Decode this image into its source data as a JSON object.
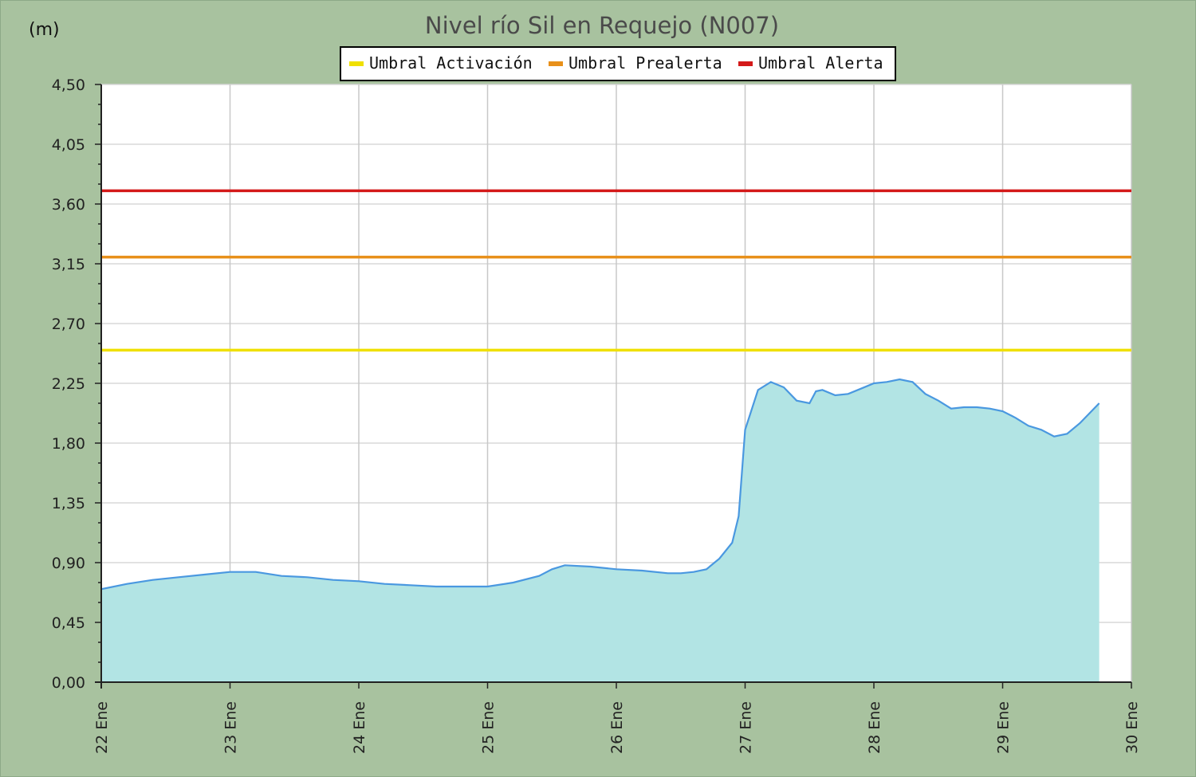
{
  "chart_data": {
    "type": "area",
    "title": "Nivel río Sil en Requejo  (N007)",
    "ylabel": "(m)",
    "xlabel": "",
    "ylim": [
      0,
      4.5
    ],
    "yticks": [
      "0,00",
      "0,45",
      "0,90",
      "1,35",
      "1,80",
      "2,25",
      "2,70",
      "3,15",
      "3,60",
      "4,05",
      "4,50"
    ],
    "xticks": [
      "22 Ene",
      "23 Ene",
      "24 Ene",
      "25 Ene",
      "26 Ene",
      "27 Ene",
      "28 Ene",
      "29 Ene",
      "30 Ene"
    ],
    "xlim_days": [
      22,
      30
    ],
    "grid": true,
    "legend_position": "top-center",
    "thresholds": [
      {
        "name": "Umbral Activación",
        "value": 2.5,
        "color": "#f0e000"
      },
      {
        "name": "Umbral Prealerta",
        "value": 3.2,
        "color": "#e8901a"
      },
      {
        "name": "Umbral Alerta",
        "value": 3.7,
        "color": "#d41a1a"
      }
    ],
    "series": [
      {
        "color": "#4a98e0",
        "fill": "#b2e4e4",
        "x_days": [
          22.0,
          22.2,
          22.4,
          22.6,
          22.8,
          23.0,
          23.2,
          23.4,
          23.6,
          23.8,
          24.0,
          24.2,
          24.4,
          24.6,
          24.8,
          25.0,
          25.2,
          25.4,
          25.5,
          25.6,
          25.8,
          26.0,
          26.2,
          26.4,
          26.5,
          26.6,
          26.7,
          26.8,
          26.9,
          26.95,
          27.0,
          27.1,
          27.2,
          27.3,
          27.4,
          27.5,
          27.55,
          27.6,
          27.7,
          27.8,
          27.9,
          28.0,
          28.1,
          28.2,
          28.3,
          28.4,
          28.5,
          28.6,
          28.7,
          28.8,
          28.9,
          29.0,
          29.1,
          29.2,
          29.3,
          29.4,
          29.5,
          29.6,
          29.75
        ],
        "values": [
          0.7,
          0.74,
          0.77,
          0.79,
          0.81,
          0.83,
          0.83,
          0.8,
          0.79,
          0.77,
          0.76,
          0.74,
          0.73,
          0.72,
          0.72,
          0.72,
          0.75,
          0.8,
          0.85,
          0.88,
          0.87,
          0.85,
          0.84,
          0.82,
          0.82,
          0.83,
          0.85,
          0.93,
          1.05,
          1.25,
          1.9,
          2.2,
          2.26,
          2.22,
          2.12,
          2.1,
          2.19,
          2.2,
          2.16,
          2.17,
          2.21,
          2.25,
          2.26,
          2.28,
          2.26,
          2.17,
          2.12,
          2.06,
          2.07,
          2.07,
          2.06,
          2.04,
          1.99,
          1.93,
          1.9,
          1.85,
          1.87,
          1.95,
          2.1
        ]
      }
    ]
  }
}
